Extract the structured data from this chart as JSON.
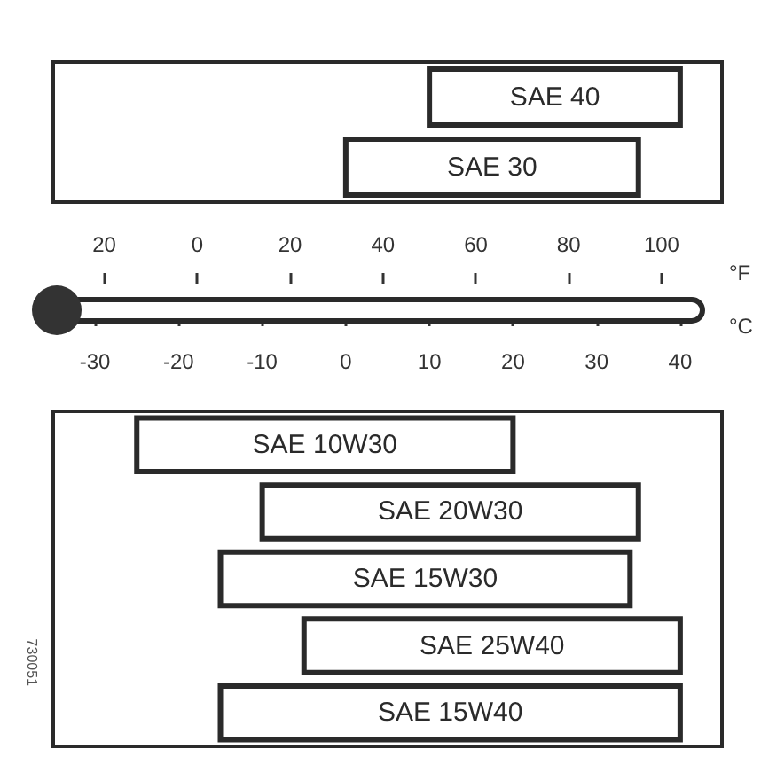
{
  "chart_data": [
    {
      "type": "bar",
      "orientation": "horizontal",
      "categories": [
        "SAE 40",
        "SAE 30"
      ],
      "values": [
        30,
        35
      ],
      "base": [
        10,
        0
      ],
      "color": "#ffffff",
      "xlim": [
        -35,
        45
      ]
    },
    {
      "type": "bar",
      "orientation": "horizontal",
      "categories": [
        "SAE 10W30",
        "SAE 20W30",
        "SAE 15W30",
        "SAE 25W40",
        "SAE 15W40"
      ],
      "values": [
        45,
        45,
        49,
        45,
        55
      ],
      "base": [
        -25,
        -10,
        -15,
        -5,
        -15
      ],
      "color": "#ffffff",
      "xlabel": "°C",
      "xlim": [
        -35,
        45
      ],
      "xticks": [
        -30,
        -20,
        -10,
        0,
        10,
        20,
        30,
        40
      ],
      "x2label": "°F",
      "x2lim": [
        -31,
        113
      ],
      "x2ticks": [
        {
          "value": -20,
          "label": "20"
        },
        0,
        20,
        40,
        60,
        80,
        100
      ],
      "annotations": [
        "730051"
      ]
    }
  ]
}
